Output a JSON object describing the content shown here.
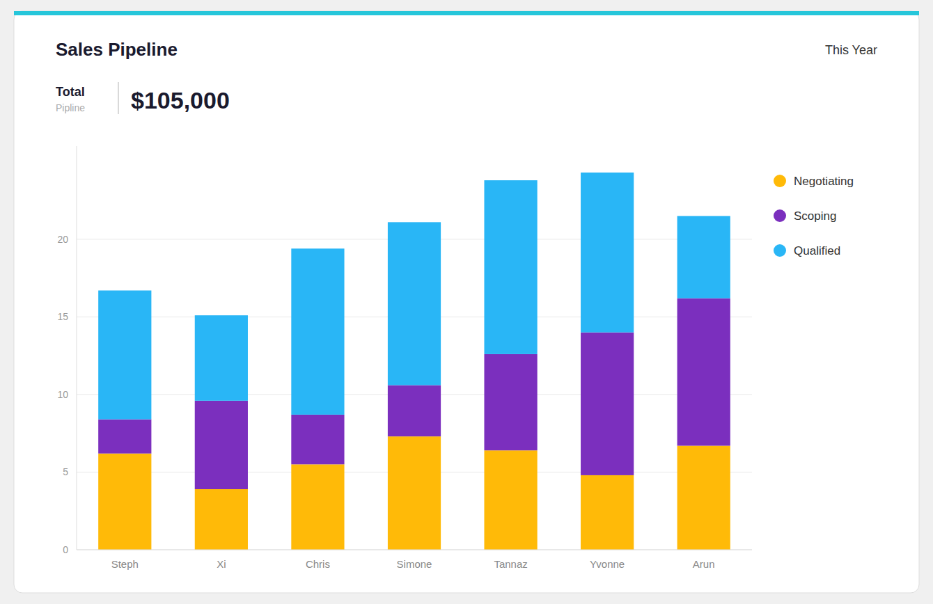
{
  "chart_data": {
    "type": "bar",
    "stacked": true,
    "title": "Sales Pipeline",
    "annotations": [
      "This Year",
      "Total",
      "Pipline",
      "$105,000"
    ],
    "categories": [
      "Steph",
      "Xi",
      "Chris",
      "Simone",
      "Tannaz",
      "Yvonne",
      "Arun"
    ],
    "series": [
      {
        "name": "Negotiating",
        "color": "#FFBA08",
        "values": [
          6.2,
          3.9,
          5.5,
          7.3,
          6.4,
          4.8,
          6.7
        ]
      },
      {
        "name": "Scoping",
        "color": "#7B2FBE",
        "values": [
          2.2,
          5.7,
          3.2,
          3.3,
          6.2,
          9.2,
          9.5
        ]
      },
      {
        "name": "Qualified",
        "color": "#29B6F6",
        "values": [
          8.3,
          5.5,
          10.7,
          10.5,
          11.2,
          10.3,
          5.3
        ]
      }
    ],
    "ylim": [
      0,
      26
    ],
    "yticks": [
      0,
      5,
      10,
      15,
      20
    ],
    "grid": true,
    "legend": "right"
  }
}
